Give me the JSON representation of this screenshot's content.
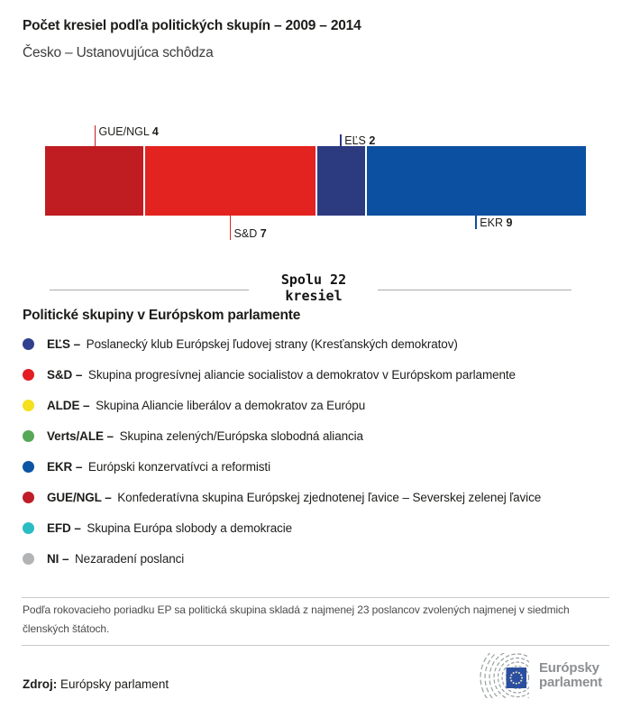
{
  "header": {
    "title": "Počet kresiel podľa politických skupín – 2009 – 2014",
    "subtitle": "Česko – Ustanovujúca schôdza"
  },
  "chart_data": {
    "type": "bar",
    "variant": "horizontal-stacked",
    "title": "Počet kresiel podľa politických skupín – 2009 – 2014",
    "subtitle": "Česko – Ustanovujúca schôdza",
    "total_seats": 22,
    "total_label": "Spolu 22 kresiel",
    "segments": [
      {
        "group": "GUE/NGL",
        "seats": 4,
        "color": "#bf1d22",
        "label_position": "above",
        "tick_len": 23
      },
      {
        "group": "S&D",
        "seats": 7,
        "color": "#e3231f",
        "label_position": "below",
        "tick_len": 27
      },
      {
        "group": "EĽS",
        "seats": 2,
        "color": "#2c3a80",
        "label_position": "above",
        "tick_len": 13
      },
      {
        "group": "EKR",
        "seats": 9,
        "color": "#0c50a1",
        "label_position": "below",
        "tick_len": 15
      }
    ]
  },
  "total": {
    "line1": "Spolu 22",
    "line2": "kresiel"
  },
  "legend": {
    "title": "Politické skupiny v Európskom parlamente",
    "items": [
      {
        "abbr": "EĽS –",
        "desc": "Poslanecký klub Európskej ľudovej strany (Kresťanských demokratov)",
        "color": "#31408e"
      },
      {
        "abbr": "S&D –",
        "desc": "Skupina progresívnej aliancie socialistov a demokratov v Európskom parlamente",
        "color": "#e31d22"
      },
      {
        "abbr": "ALDE –",
        "desc": "Skupina Aliancie liberálov a demokratov za Európu",
        "color": "#f4e01d"
      },
      {
        "abbr": "Verts/ALE –",
        "desc": "Skupina zelených/Európska slobodná aliancia",
        "color": "#55a855"
      },
      {
        "abbr": "EKR –",
        "desc": "Európski konzervatívci a reformisti",
        "color": "#0b55a4"
      },
      {
        "abbr": "GUE/NGL –",
        "desc": "Konfederatívna skupina Európskej zjednotenej ľavice – Severskej zelenej ľavice",
        "color": "#c01d28"
      },
      {
        "abbr": "EFD –",
        "desc": "Skupina Európa slobody a demokracie",
        "color": "#2abdc3"
      },
      {
        "abbr": "NI –",
        "desc": "Nezaradení poslanci",
        "color": "#b1b3b4"
      }
    ]
  },
  "footnote": "Podľa rokovacieho poriadku EP sa politická skupina skladá z najmenej 23 poslancov zvolených najmenej v siedmich členských štátoch.",
  "source": {
    "label": "Zdroj:",
    "value": "Európsky parlament"
  },
  "logo": {
    "line1": "Európsky",
    "line2": "parlament",
    "flag_color": "#2b4fa0",
    "arc_color": "#9aa0a2"
  }
}
